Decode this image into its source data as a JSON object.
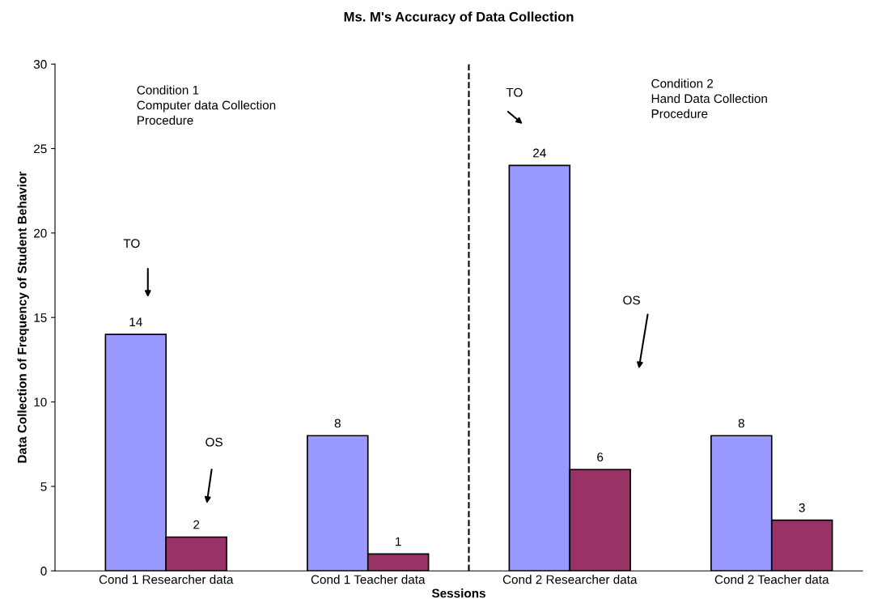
{
  "chart_data": {
    "type": "bar",
    "title": "Ms. M's Accuracy of Data Collection",
    "xlabel": "Sessions",
    "ylabel": "Data Collection of Frequency of Student Behavior",
    "categories": [
      "Cond 1 Researcher data",
      "Cond 1 Teacher data",
      "Cond 2 Researcher data",
      "Cond 2 Teacher data"
    ],
    "series": [
      {
        "color": "#9999ff",
        "values": [
          14,
          8,
          24,
          8
        ]
      },
      {
        "color": "#993366",
        "values": [
          2,
          1,
          6,
          3
        ]
      }
    ],
    "ylim": [
      0,
      30
    ],
    "yticks": [
      0,
      5,
      10,
      15,
      20,
      25,
      30
    ],
    "data_labels": true,
    "grid": false,
    "annotations": [
      "Condition 1\nComputer data Collection\nProcedure",
      "Condition 2\nHand Data Collection\nProcedure",
      "TO",
      "OS",
      "TO",
      "OS"
    ]
  }
}
